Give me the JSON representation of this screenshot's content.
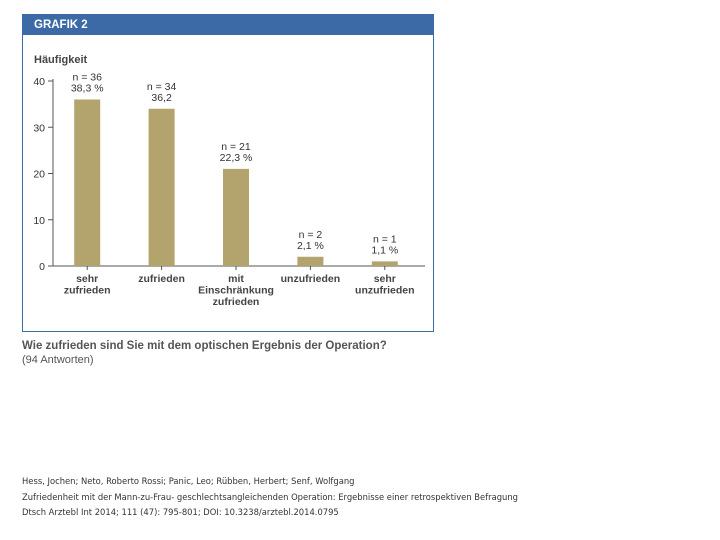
{
  "header": {
    "title": "GRAFIK 2"
  },
  "colors": {
    "bar": "#b3a46e",
    "header": "#3b6aa6",
    "axis": "#555555"
  },
  "chart_data": {
    "type": "bar",
    "ylabel": "Häufigkeit",
    "ylim": [
      0,
      40
    ],
    "yticks": [
      0,
      10,
      20,
      30,
      40
    ],
    "categories": [
      [
        "sehr",
        "zufrieden"
      ],
      [
        "zufrieden"
      ],
      [
        "mit",
        "Einschränkung",
        "zufrieden"
      ],
      [
        "unzufrieden"
      ],
      [
        "sehr",
        "unzufrieden"
      ]
    ],
    "values": [
      36,
      34,
      21,
      2,
      1
    ],
    "data_labels": [
      [
        "n = 36",
        "38,3 %"
      ],
      [
        "n = 34",
        "36,2"
      ],
      [
        "n = 21",
        "22,3 %"
      ],
      [
        "n = 2",
        "2,1 %"
      ],
      [
        "n = 1",
        "1,1 %"
      ]
    ]
  },
  "caption": {
    "title": "Wie zufrieden sind Sie mit dem optischen Ergebnis der Operation?",
    "subtitle": "(94 Antworten)"
  },
  "citation": {
    "authors": "Hess, Jochen; Neto, Roberto Rossi; Panic, Leo; Rübben, Herbert; Senf, Wolfgang",
    "title": "Zufriedenheit mit der Mann-zu-Frau- geschlechtsangleichenden Operation: Ergebnisse einer retrospektiven Befragung",
    "source": "Dtsch Arztebl Int 2014; 111 (47): 795-801; DOI: 10.3238/arztebl.2014.0795"
  }
}
